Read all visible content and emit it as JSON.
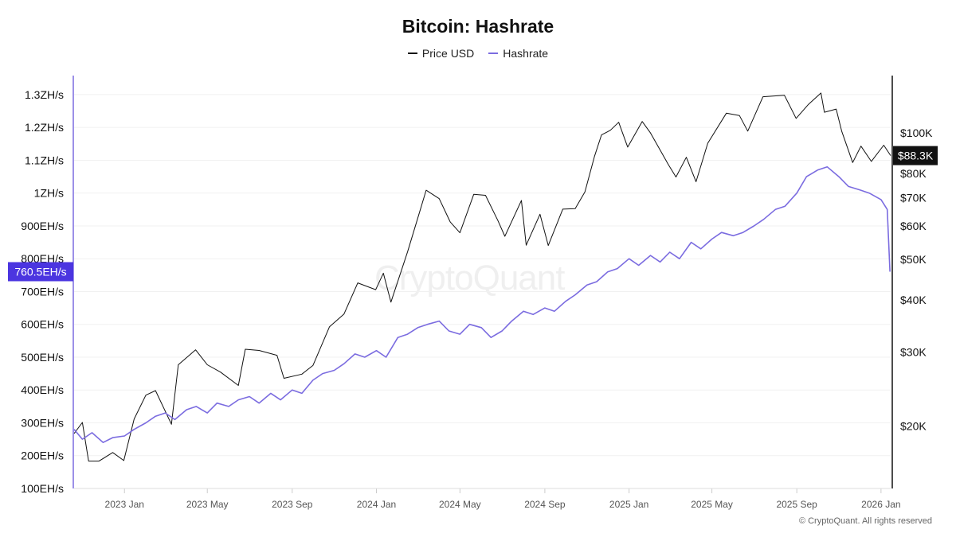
{
  "chart_data": {
    "type": "line",
    "title": "Bitcoin: Hashrate",
    "legend_position": "top",
    "grid": true,
    "watermark": "CryptoQuant",
    "footer": "© CryptoQuant. All rights reserved",
    "x_ticks": [
      "2023 Jan",
      "2023 May",
      "2023 Sep",
      "2024 Jan",
      "2024 May",
      "2024 Sep",
      "2025 Jan",
      "2025 May",
      "2025 Sep",
      "2026 Jan"
    ],
    "x_range": [
      "2022-10-20",
      "2026-01-15"
    ],
    "left_axis": {
      "scale": "linear",
      "ylim": [
        100,
        1358
      ],
      "ticks": [
        {
          "v": 100,
          "label": "100EH/s"
        },
        {
          "v": 200,
          "label": "200EH/s"
        },
        {
          "v": 300,
          "label": "300EH/s"
        },
        {
          "v": 400,
          "label": "400EH/s"
        },
        {
          "v": 500,
          "label": "500EH/s"
        },
        {
          "v": 600,
          "label": "600EH/s"
        },
        {
          "v": 700,
          "label": "700EH/s"
        },
        {
          "v": 800,
          "label": "800EH/s"
        },
        {
          "v": 900,
          "label": "900EH/s"
        },
        {
          "v": 1000,
          "label": "1ZH/s"
        },
        {
          "v": 1100,
          "label": "1.1ZH/s"
        },
        {
          "v": 1200,
          "label": "1.2ZH/s"
        },
        {
          "v": 1300,
          "label": "1.3ZH/s"
        }
      ],
      "current_label": "760.5EH/s",
      "current_value": 760.5
    },
    "right_axis": {
      "scale": "log",
      "ylim": [
        14200,
        137000
      ],
      "ticks": [
        {
          "v": 20000,
          "label": "$20K"
        },
        {
          "v": 30000,
          "label": "$30K"
        },
        {
          "v": 40000,
          "label": "$40K"
        },
        {
          "v": 50000,
          "label": "$50K"
        },
        {
          "v": 60000,
          "label": "$60K"
        },
        {
          "v": 70000,
          "label": "$70K"
        },
        {
          "v": 80000,
          "label": "$80K"
        },
        {
          "v": 100000,
          "label": "$100K"
        }
      ],
      "current_label": "$88.3K",
      "current_value": 88300
    },
    "series": [
      {
        "name": "Price USD",
        "color": "#111111",
        "axis": "right",
        "points": [
          [
            "2022-10-20",
            19200
          ],
          [
            "2022-11-01",
            20400
          ],
          [
            "2022-11-10",
            16500
          ],
          [
            "2022-11-25",
            16500
          ],
          [
            "2022-12-15",
            17300
          ],
          [
            "2022-12-31",
            16550
          ],
          [
            "2023-01-15",
            20800
          ],
          [
            "2023-02-01",
            23700
          ],
          [
            "2023-02-15",
            24300
          ],
          [
            "2023-03-10",
            20200
          ],
          [
            "2023-03-20",
            28000
          ],
          [
            "2023-04-14",
            30400
          ],
          [
            "2023-05-01",
            28000
          ],
          [
            "2023-05-20",
            26900
          ],
          [
            "2023-06-15",
            25000
          ],
          [
            "2023-06-25",
            30500
          ],
          [
            "2023-07-15",
            30300
          ],
          [
            "2023-08-10",
            29500
          ],
          [
            "2023-08-20",
            26000
          ],
          [
            "2023-09-15",
            26600
          ],
          [
            "2023-10-01",
            27900
          ],
          [
            "2023-10-25",
            34500
          ],
          [
            "2023-11-15",
            37000
          ],
          [
            "2023-12-05",
            43900
          ],
          [
            "2023-12-31",
            42300
          ],
          [
            "2024-01-11",
            46300
          ],
          [
            "2024-01-22",
            39500
          ],
          [
            "2024-02-15",
            52000
          ],
          [
            "2024-03-05",
            66000
          ],
          [
            "2024-03-13",
            73000
          ],
          [
            "2024-04-01",
            69700
          ],
          [
            "2024-04-17",
            61300
          ],
          [
            "2024-05-01",
            57800
          ],
          [
            "2024-05-21",
            71400
          ],
          [
            "2024-06-07",
            71000
          ],
          [
            "2024-06-25",
            61800
          ],
          [
            "2024-07-05",
            56700
          ],
          [
            "2024-07-29",
            69000
          ],
          [
            "2024-08-05",
            54000
          ],
          [
            "2024-08-25",
            64000
          ],
          [
            "2024-09-06",
            53900
          ],
          [
            "2024-09-27",
            65800
          ],
          [
            "2024-10-15",
            66000
          ],
          [
            "2024-10-29",
            72300
          ],
          [
            "2024-11-12",
            88000
          ],
          [
            "2024-11-22",
            98900
          ],
          [
            "2024-12-05",
            101500
          ],
          [
            "2024-12-17",
            106000
          ],
          [
            "2024-12-30",
            92500
          ],
          [
            "2025-01-20",
            106500
          ],
          [
            "2025-02-01",
            100000
          ],
          [
            "2025-02-27",
            84000
          ],
          [
            "2025-03-10",
            78500
          ],
          [
            "2025-03-25",
            87500
          ],
          [
            "2025-04-08",
            76500
          ],
          [
            "2025-04-25",
            94500
          ],
          [
            "2025-05-22",
            111500
          ],
          [
            "2025-06-10",
            110000
          ],
          [
            "2025-06-22",
            101000
          ],
          [
            "2025-07-14",
            122000
          ],
          [
            "2025-08-14",
            123000
          ],
          [
            "2025-08-31",
            108300
          ],
          [
            "2025-09-18",
            117000
          ],
          [
            "2025-10-06",
            124500
          ],
          [
            "2025-10-11",
            112000
          ],
          [
            "2025-10-28",
            114000
          ],
          [
            "2025-11-05",
            101000
          ],
          [
            "2025-11-21",
            85000
          ],
          [
            "2025-12-03",
            93000
          ],
          [
            "2025-12-18",
            85500
          ],
          [
            "2026-01-05",
            93500
          ],
          [
            "2026-01-15",
            88300
          ]
        ]
      },
      {
        "name": "Hashrate",
        "color": "#7b6ce0",
        "axis": "left",
        "points": [
          [
            "2022-10-20",
            280
          ],
          [
            "2022-11-01",
            250
          ],
          [
            "2022-11-15",
            270
          ],
          [
            "2022-12-01",
            240
          ],
          [
            "2022-12-15",
            255
          ],
          [
            "2023-01-01",
            260
          ],
          [
            "2023-01-15",
            280
          ],
          [
            "2023-02-01",
            300
          ],
          [
            "2023-02-15",
            320
          ],
          [
            "2023-03-01",
            330
          ],
          [
            "2023-03-15",
            310
          ],
          [
            "2023-04-01",
            340
          ],
          [
            "2023-04-15",
            350
          ],
          [
            "2023-05-01",
            330
          ],
          [
            "2023-05-15",
            360
          ],
          [
            "2023-06-01",
            350
          ],
          [
            "2023-06-15",
            370
          ],
          [
            "2023-07-01",
            380
          ],
          [
            "2023-07-15",
            360
          ],
          [
            "2023-08-01",
            390
          ],
          [
            "2023-08-15",
            370
          ],
          [
            "2023-09-01",
            400
          ],
          [
            "2023-09-15",
            390
          ],
          [
            "2023-10-01",
            430
          ],
          [
            "2023-10-15",
            450
          ],
          [
            "2023-11-01",
            460
          ],
          [
            "2023-11-15",
            480
          ],
          [
            "2023-12-01",
            510
          ],
          [
            "2023-12-15",
            500
          ],
          [
            "2024-01-01",
            520
          ],
          [
            "2024-01-15",
            500
          ],
          [
            "2024-02-01",
            560
          ],
          [
            "2024-02-15",
            570
          ],
          [
            "2024-03-01",
            590
          ],
          [
            "2024-03-15",
            600
          ],
          [
            "2024-04-01",
            610
          ],
          [
            "2024-04-15",
            580
          ],
          [
            "2024-05-01",
            570
          ],
          [
            "2024-05-15",
            600
          ],
          [
            "2024-06-01",
            590
          ],
          [
            "2024-06-15",
            560
          ],
          [
            "2024-07-01",
            580
          ],
          [
            "2024-07-15",
            610
          ],
          [
            "2024-08-01",
            640
          ],
          [
            "2024-08-15",
            630
          ],
          [
            "2024-09-01",
            650
          ],
          [
            "2024-09-15",
            640
          ],
          [
            "2024-10-01",
            670
          ],
          [
            "2024-10-15",
            690
          ],
          [
            "2024-11-01",
            720
          ],
          [
            "2024-11-15",
            730
          ],
          [
            "2024-12-01",
            760
          ],
          [
            "2024-12-15",
            770
          ],
          [
            "2025-01-01",
            800
          ],
          [
            "2025-01-15",
            780
          ],
          [
            "2025-02-01",
            810
          ],
          [
            "2025-02-15",
            790
          ],
          [
            "2025-03-01",
            820
          ],
          [
            "2025-03-15",
            800
          ],
          [
            "2025-04-01",
            850
          ],
          [
            "2025-04-15",
            830
          ],
          [
            "2025-05-01",
            860
          ],
          [
            "2025-05-15",
            880
          ],
          [
            "2025-06-01",
            870
          ],
          [
            "2025-06-15",
            880
          ],
          [
            "2025-07-01",
            900
          ],
          [
            "2025-07-15",
            920
          ],
          [
            "2025-08-01",
            950
          ],
          [
            "2025-08-15",
            960
          ],
          [
            "2025-09-01",
            1000
          ],
          [
            "2025-09-15",
            1050
          ],
          [
            "2025-10-01",
            1070
          ],
          [
            "2025-10-15",
            1080
          ],
          [
            "2025-11-01",
            1050
          ],
          [
            "2025-11-15",
            1020
          ],
          [
            "2025-12-01",
            1010
          ],
          [
            "2025-12-15",
            1000
          ],
          [
            "2026-01-01",
            980
          ],
          [
            "2026-01-10",
            950
          ],
          [
            "2026-01-14",
            760.5
          ]
        ]
      }
    ]
  }
}
